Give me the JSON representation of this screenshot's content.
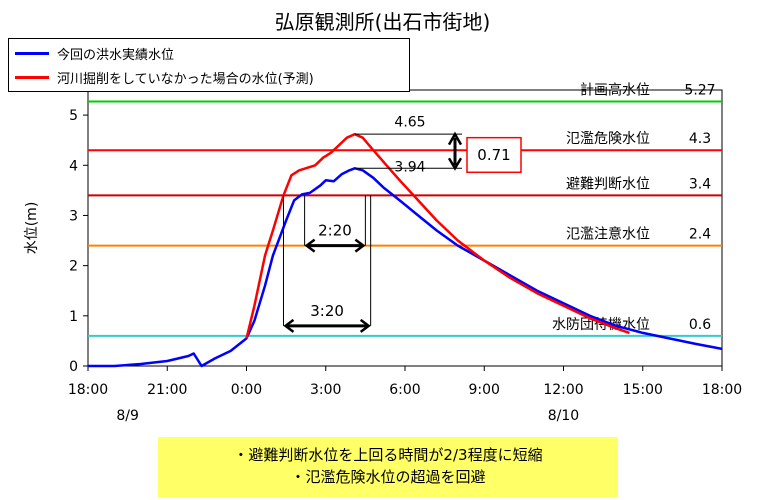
{
  "title": "弘原観測所(出石市街地)",
  "legend": [
    {
      "label": "今回の洪水実績水位",
      "color": "#0000ff"
    },
    {
      "label": "河川掘削をしていなかった場合の水位(予測)",
      "color": "#ff0000"
    }
  ],
  "note_lines": [
    "・避難判断水位を上回る時間が2/3程度に短縮",
    "・氾濫危険水位の超過を回避"
  ],
  "chart_data": {
    "type": "line",
    "title": "弘原観測所(出石市街地)",
    "xlabel": "",
    "ylabel": "水位(m)",
    "xlim": [
      0,
      24
    ],
    "ylim": [
      0,
      5.5
    ],
    "x_ticks": [
      {
        "x": 0,
        "label": "18:00"
      },
      {
        "x": 3,
        "label": "21:00"
      },
      {
        "x": 6,
        "label": "0:00"
      },
      {
        "x": 9,
        "label": "3:00"
      },
      {
        "x": 12,
        "label": "6:00"
      },
      {
        "x": 15,
        "label": "9:00"
      },
      {
        "x": 18,
        "label": "12:00"
      },
      {
        "x": 21,
        "label": "15:00"
      },
      {
        "x": 24,
        "label": "18:00"
      }
    ],
    "date_labels": [
      {
        "x": 1.5,
        "label": "8/9"
      },
      {
        "x": 18,
        "label": "8/10"
      }
    ],
    "y_ticks": [
      0,
      1,
      2,
      3,
      4,
      5
    ],
    "thresholds": [
      {
        "label": "計画高水位",
        "value": 5.27,
        "value_label": "5.27",
        "color": "#00cc00"
      },
      {
        "label": "氾濫危険水位",
        "value": 4.3,
        "value_label": "4.3",
        "color": "#ff0000"
      },
      {
        "label": "避難判断水位",
        "value": 3.4,
        "value_label": "3.4",
        "color": "#cc0000"
      },
      {
        "label": "氾濫注意水位",
        "value": 2.4,
        "value_label": "2.4",
        "color": "#ff8000"
      },
      {
        "label": "水防団待機水位",
        "value": 0.6,
        "value_label": "0.6",
        "color": "#33cccc"
      }
    ],
    "series": [
      {
        "name": "今回の洪水実績水位",
        "color": "#0000ff",
        "points": [
          [
            0,
            0.0
          ],
          [
            1,
            0.0
          ],
          [
            2,
            0.04
          ],
          [
            3,
            0.1
          ],
          [
            3.8,
            0.2
          ],
          [
            4.0,
            0.25
          ],
          [
            4.3,
            0.0
          ],
          [
            4.8,
            0.15
          ],
          [
            5.4,
            0.3
          ],
          [
            6.0,
            0.55
          ],
          [
            6.3,
            0.9
          ],
          [
            6.7,
            1.6
          ],
          [
            7.0,
            2.2
          ],
          [
            7.5,
            2.9
          ],
          [
            7.8,
            3.3
          ],
          [
            8.1,
            3.42
          ],
          [
            8.4,
            3.45
          ],
          [
            8.8,
            3.6
          ],
          [
            9.0,
            3.7
          ],
          [
            9.3,
            3.68
          ],
          [
            9.6,
            3.82
          ],
          [
            9.9,
            3.9
          ],
          [
            10.1,
            3.94
          ],
          [
            10.4,
            3.9
          ],
          [
            10.8,
            3.75
          ],
          [
            11.2,
            3.55
          ],
          [
            11.8,
            3.3
          ],
          [
            12.5,
            3.0
          ],
          [
            13.2,
            2.7
          ],
          [
            14.0,
            2.4
          ],
          [
            15.0,
            2.1
          ],
          [
            16.0,
            1.8
          ],
          [
            17.0,
            1.5
          ],
          [
            18.0,
            1.25
          ],
          [
            19.0,
            1.0
          ],
          [
            20.0,
            0.8
          ],
          [
            21.0,
            0.66
          ],
          [
            22.0,
            0.55
          ],
          [
            23.0,
            0.44
          ],
          [
            24.0,
            0.34
          ]
        ]
      },
      {
        "name": "河川掘削をしていなかった場合の水位(予測)",
        "color": "#ff0000",
        "points": [
          [
            6.0,
            0.55
          ],
          [
            6.3,
            1.2
          ],
          [
            6.7,
            2.2
          ],
          [
            7.0,
            2.7
          ],
          [
            7.4,
            3.4
          ],
          [
            7.7,
            3.8
          ],
          [
            8.0,
            3.9
          ],
          [
            8.3,
            3.95
          ],
          [
            8.6,
            4.0
          ],
          [
            8.9,
            4.15
          ],
          [
            9.2,
            4.25
          ],
          [
            9.5,
            4.4
          ],
          [
            9.8,
            4.55
          ],
          [
            10.1,
            4.62
          ],
          [
            10.4,
            4.55
          ],
          [
            10.8,
            4.3
          ],
          [
            11.3,
            4.0
          ],
          [
            11.8,
            3.7
          ],
          [
            12.5,
            3.3
          ],
          [
            13.2,
            2.9
          ],
          [
            14.0,
            2.5
          ],
          [
            15.0,
            2.1
          ],
          [
            16.0,
            1.75
          ],
          [
            17.0,
            1.45
          ],
          [
            18.0,
            1.2
          ],
          [
            19.0,
            0.95
          ],
          [
            20.0,
            0.75
          ],
          [
            20.5,
            0.66
          ]
        ]
      }
    ],
    "annotations": {
      "peak_labels": [
        {
          "label": "4.65",
          "value": 4.65
        },
        {
          "label": "3.94",
          "value": 3.94
        }
      ],
      "difference_label": "0.71",
      "duration_arrows": [
        {
          "label": "2:20",
          "start": 8.2,
          "end": 10.5,
          "y": 2.4
        },
        {
          "label": "3:20",
          "start": 7.4,
          "end": 10.7,
          "y": 0.8
        }
      ]
    }
  }
}
